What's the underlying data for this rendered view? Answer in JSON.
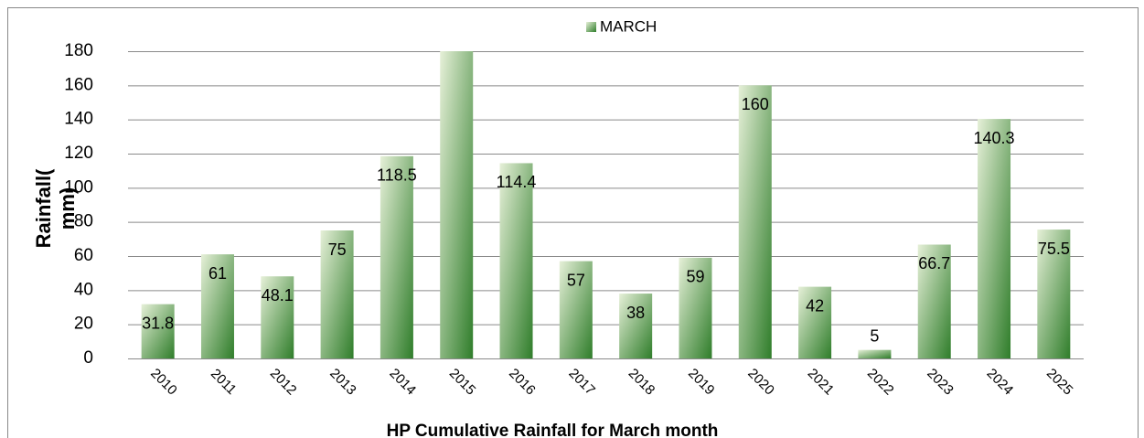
{
  "chart_data": {
    "type": "bar",
    "title": "HP Cumulative Rainfall for March month",
    "y_label": "Rainfall( mm)",
    "categories": [
      "2010",
      "2011",
      "2012",
      "2013",
      "2014",
      "2015",
      "2016",
      "2017",
      "2018",
      "2019",
      "2020",
      "2021",
      "2022",
      "2023",
      "2024",
      "2025"
    ],
    "series": [
      {
        "name": "MARCH",
        "color": "#2f7d2a",
        "values": [
          31.8,
          61,
          48.1,
          75,
          118.5,
          180,
          114.4,
          57,
          38,
          59,
          160,
          42,
          5,
          66.7,
          140.3,
          75.5
        ],
        "value_labels": [
          "31.8",
          "61",
          "48.1",
          "75",
          "118.5",
          null,
          "114.4",
          "57",
          "38",
          "59",
          "160",
          "42",
          "5",
          "66.7",
          "140.3",
          "75.5"
        ]
      }
    ],
    "ylim": [
      0,
      180
    ],
    "yticks": [
      0,
      20,
      40,
      60,
      80,
      100,
      120,
      140,
      160,
      180
    ],
    "grid": true,
    "legend": "top"
  }
}
